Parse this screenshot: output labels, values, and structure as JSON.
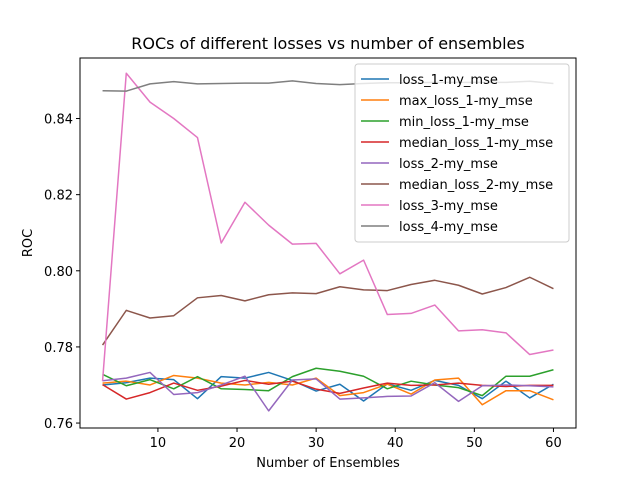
{
  "chart_data": {
    "type": "line",
    "title": "ROCs of different losses vs number of ensembles",
    "xlabel": "Number of Ensembles",
    "ylabel": "ROC",
    "xlim": [
      0.15,
      62.85
    ],
    "ylim": [
      0.7587,
      0.8559
    ],
    "xticks": [
      10,
      20,
      30,
      40,
      50,
      60
    ],
    "xtick_labels": [
      "10",
      "20",
      "30",
      "40",
      "50",
      "60"
    ],
    "yticks": [
      0.76,
      0.78,
      0.8,
      0.82,
      0.84
    ],
    "ytick_labels": [
      "0.76",
      "0.78",
      "0.80",
      "0.82",
      "0.84"
    ],
    "grid": false,
    "legend_position": "top-right",
    "x": [
      3,
      6,
      9,
      12,
      15,
      18,
      21,
      24,
      27,
      30,
      33,
      36,
      39,
      42,
      45,
      48,
      51,
      54,
      57,
      60
    ],
    "series": [
      {
        "name": "loss_1-my_mse",
        "color": "#1f77b4",
        "values": [
          0.77,
          0.7706,
          0.7718,
          0.7714,
          0.7664,
          0.7722,
          0.7718,
          0.7733,
          0.7712,
          0.7684,
          0.7702,
          0.7658,
          0.7703,
          0.7686,
          0.7712,
          0.7699,
          0.7664,
          0.771,
          0.7666,
          0.7702
        ]
      },
      {
        "name": "max_loss_1-my_mse",
        "color": "#ff7f0e",
        "values": [
          0.7705,
          0.771,
          0.77,
          0.7725,
          0.7718,
          0.7705,
          0.77,
          0.7707,
          0.77,
          0.7718,
          0.7672,
          0.768,
          0.7702,
          0.7676,
          0.7713,
          0.7718,
          0.7648,
          0.7685,
          0.7685,
          0.7661
        ]
      },
      {
        "name": "min_loss_1-my_mse",
        "color": "#2ca02c",
        "values": [
          0.7728,
          0.7698,
          0.7714,
          0.769,
          0.7722,
          0.769,
          0.7688,
          0.7685,
          0.7722,
          0.7744,
          0.7736,
          0.7723,
          0.769,
          0.771,
          0.77,
          0.7693,
          0.7672,
          0.7723,
          0.7723,
          0.774
        ]
      },
      {
        "name": "median_loss_1-my_mse",
        "color": "#d62728",
        "values": [
          0.7701,
          0.7663,
          0.768,
          0.7705,
          0.7686,
          0.7697,
          0.7712,
          0.7702,
          0.771,
          0.7689,
          0.7678,
          0.7692,
          0.7705,
          0.7699,
          0.77,
          0.7705,
          0.7699,
          0.7696,
          0.7699,
          0.7699
        ]
      },
      {
        "name": "loss_2-my_mse",
        "color": "#9467bd",
        "values": [
          0.7711,
          0.7718,
          0.7733,
          0.7675,
          0.768,
          0.77,
          0.7723,
          0.7632,
          0.7713,
          0.7716,
          0.7663,
          0.7666,
          0.767,
          0.7671,
          0.7706,
          0.7657,
          0.7698,
          0.77,
          0.7698,
          0.7695
        ]
      },
      {
        "name": "median_loss_2-my_mse",
        "color": "#8c564b",
        "values": [
          0.7805,
          0.7896,
          0.7876,
          0.7882,
          0.7929,
          0.7935,
          0.7921,
          0.7937,
          0.7942,
          0.794,
          0.7958,
          0.795,
          0.7948,
          0.7964,
          0.7975,
          0.7962,
          0.7939,
          0.7956,
          0.7983,
          0.7953
        ]
      },
      {
        "name": "loss_3-my_mse",
        "color": "#e377c2",
        "values": [
          0.771,
          0.8519,
          0.8443,
          0.84,
          0.835,
          0.8073,
          0.818,
          0.812,
          0.807,
          0.8072,
          0.7992,
          0.8028,
          0.7885,
          0.7888,
          0.791,
          0.7842,
          0.7845,
          0.7837,
          0.778,
          0.7792
        ]
      },
      {
        "name": "loss_4-my_mse",
        "color": "#7f7f7f",
        "values": [
          0.8473,
          0.8472,
          0.8491,
          0.8497,
          0.8491,
          0.8492,
          0.8493,
          0.8493,
          0.8499,
          0.8492,
          0.8489,
          0.8492,
          0.8494,
          0.8494,
          0.8495,
          0.8495,
          0.8495,
          0.8495,
          0.8498,
          0.8492
        ]
      }
    ]
  }
}
